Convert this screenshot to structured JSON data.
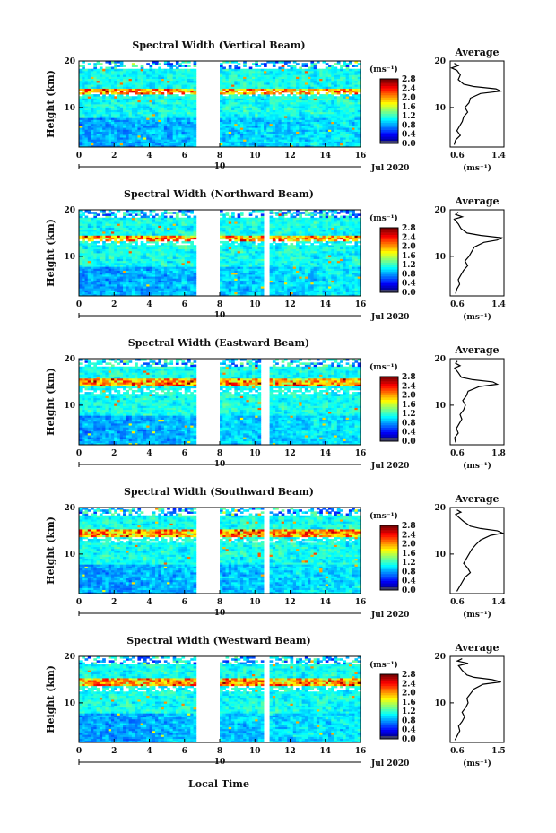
{
  "figure": {
    "xlabel": "Local Time",
    "date_label": "Jul 2020",
    "date_marker": "10",
    "ylabel": "Height (km)",
    "colorbar_unit": "(ms⁻¹)",
    "colorbar_ticks": [
      "0.0",
      "0.4",
      "0.8",
      "1.2",
      "1.6",
      "2.0",
      "2.4",
      "2.8"
    ],
    "avg_title": "Average",
    "avg_unit": "(ms⁻¹)"
  },
  "chart_data": [
    {
      "type": "heatmap",
      "title": "Spectral Width (Vertical Beam)",
      "xlabel": "Local Time",
      "ylabel": "Height (km)",
      "x_ticks": [
        "0",
        "2",
        "4",
        "6",
        "8",
        "10",
        "12",
        "14",
        "16"
      ],
      "xlim": [
        0,
        16
      ],
      "ylim": [
        1.5,
        20
      ],
      "y_ticks": [
        "20",
        "10"
      ],
      "data_gaps_hours": [
        [
          6.7,
          8.0
        ]
      ],
      "clim": [
        0.0,
        2.8
      ],
      "colormap": "jet",
      "features": {
        "turbulent_layer_km": 13.5,
        "top_km": 18.5
      },
      "average_profile": {
        "xlim": [
          0.6,
          1.4
        ],
        "x_ticks": [
          "0.6",
          "1.4"
        ],
        "y_ticks": [
          "20",
          "10"
        ],
        "height_km": [
          2,
          3,
          4,
          5,
          6,
          7,
          8,
          9,
          10,
          11,
          12,
          13,
          13.5,
          14,
          14.5,
          15,
          16,
          17,
          18,
          18.5,
          19,
          19.5
        ],
        "width_ms": [
          0.66,
          0.68,
          0.75,
          0.7,
          0.74,
          0.78,
          0.8,
          0.86,
          0.82,
          0.88,
          0.9,
          1.05,
          1.35,
          1.28,
          0.95,
          0.8,
          0.72,
          0.75,
          0.7,
          0.62,
          0.72,
          0.66
        ]
      }
    },
    {
      "type": "heatmap",
      "title": "Spectral Width (Northward Beam)",
      "xlabel": "Local Time",
      "ylabel": "Height (km)",
      "x_ticks": [
        "0",
        "2",
        "4",
        "6",
        "8",
        "10",
        "12",
        "14",
        "16"
      ],
      "xlim": [
        0,
        16
      ],
      "ylim": [
        1.5,
        20
      ],
      "y_ticks": [
        "20",
        "10"
      ],
      "data_gaps_hours": [
        [
          6.7,
          8.0
        ],
        [
          10.5,
          10.8
        ]
      ],
      "clim": [
        0.0,
        2.8
      ],
      "colormap": "jet",
      "features": {
        "turbulent_layer_km": 14,
        "top_km": 18.5
      },
      "average_profile": {
        "xlim": [
          0.6,
          1.4
        ],
        "x_ticks": [
          "0.6",
          "1.4"
        ],
        "y_ticks": [
          "20",
          "10"
        ],
        "height_km": [
          2,
          3,
          4,
          5,
          6,
          7,
          8,
          9,
          10,
          11,
          12,
          13,
          13.5,
          14,
          14.5,
          15,
          16,
          17,
          18,
          18.5,
          19,
          19.5
        ],
        "width_ms": [
          0.68,
          0.7,
          0.74,
          0.72,
          0.76,
          0.8,
          0.86,
          0.82,
          0.88,
          0.92,
          0.96,
          1.1,
          1.3,
          1.36,
          1.05,
          0.85,
          0.76,
          0.72,
          0.66,
          0.78,
          0.68,
          0.72
        ]
      }
    },
    {
      "type": "heatmap",
      "title": "Spectral Width (Eastward Beam)",
      "xlabel": "Local Time",
      "ylabel": "Height (km)",
      "x_ticks": [
        "0",
        "2",
        "4",
        "6",
        "8",
        "10",
        "12",
        "14",
        "16"
      ],
      "xlim": [
        0,
        16
      ],
      "ylim": [
        1.5,
        20
      ],
      "y_ticks": [
        "20",
        "10"
      ],
      "data_gaps_hours": [
        [
          6.7,
          8.0
        ],
        [
          10.3,
          10.8
        ]
      ],
      "clim": [
        0.0,
        2.8
      ],
      "colormap": "jet",
      "features": {
        "turbulent_layer_km": 15,
        "top_km": 18.5
      },
      "average_profile": {
        "xlim": [
          0.6,
          1.8
        ],
        "x_ticks": [
          "0.6",
          "1.8"
        ],
        "y_ticks": [
          "20",
          "10"
        ],
        "height_km": [
          2,
          3,
          4,
          5,
          6,
          7,
          8,
          9,
          10,
          11,
          12,
          13,
          14,
          14.5,
          15,
          15.5,
          16,
          17,
          18,
          18.5,
          19,
          19.5
        ],
        "width_ms": [
          0.72,
          0.7,
          0.78,
          0.74,
          0.8,
          0.86,
          0.82,
          0.9,
          0.94,
          0.88,
          0.96,
          1.0,
          1.25,
          1.65,
          1.55,
          1.1,
          0.85,
          0.78,
          0.7,
          0.82,
          0.72,
          0.76
        ]
      }
    },
    {
      "type": "heatmap",
      "title": "Spectral Width (Southward Beam)",
      "xlabel": "Local Time",
      "ylabel": "Height (km)",
      "x_ticks": [
        "0",
        "2",
        "4",
        "6",
        "8",
        "10",
        "12",
        "14",
        "16"
      ],
      "xlim": [
        0,
        16
      ],
      "ylim": [
        1.5,
        20
      ],
      "y_ticks": [
        "20",
        "10"
      ],
      "data_gaps_hours": [
        [
          6.7,
          8.0
        ],
        [
          10.5,
          10.8
        ]
      ],
      "clim": [
        0.0,
        2.8
      ],
      "colormap": "jet",
      "features": {
        "turbulent_layer_km": 14.5,
        "top_km": 18.5
      },
      "average_profile": {
        "xlim": [
          0.6,
          1.4
        ],
        "x_ticks": [
          "0.6",
          "1.4"
        ],
        "y_ticks": [
          "20",
          "10"
        ],
        "height_km": [
          2,
          3,
          4,
          5,
          6,
          7,
          8,
          9,
          10,
          11,
          12,
          13,
          14,
          14.5,
          15,
          15.5,
          16,
          17,
          18,
          18.5,
          19,
          19.5
        ],
        "width_ms": [
          0.7,
          0.74,
          0.78,
          0.82,
          0.9,
          0.86,
          0.8,
          0.84,
          0.88,
          0.92,
          0.98,
          1.05,
          1.2,
          1.38,
          1.3,
          1.05,
          0.9,
          0.8,
          0.72,
          0.68,
          0.76,
          0.7
        ]
      }
    },
    {
      "type": "heatmap",
      "title": "Spectral Width (Westward Beam)",
      "xlabel": "Local Time",
      "ylabel": "Height (km)",
      "x_ticks": [
        "0",
        "2",
        "4",
        "6",
        "8",
        "10",
        "12",
        "14",
        "16"
      ],
      "xlim": [
        0,
        16
      ],
      "ylim": [
        1.5,
        20
      ],
      "y_ticks": [
        "20",
        "10"
      ],
      "data_gaps_hours": [
        [
          6.7,
          8.0
        ],
        [
          10.5,
          10.8
        ]
      ],
      "clim": [
        0.0,
        2.8
      ],
      "colormap": "jet",
      "features": {
        "turbulent_layer_km": 14.5,
        "top_km": 18.5
      },
      "average_profile": {
        "xlim": [
          0.6,
          1.5
        ],
        "x_ticks": [
          "0.6",
          "1.5"
        ],
        "y_ticks": [
          "20",
          "10"
        ],
        "height_km": [
          2,
          3,
          4,
          5,
          6,
          7,
          8,
          9,
          10,
          11,
          12,
          13,
          14,
          14.5,
          15,
          15.5,
          16,
          17,
          18,
          18.5,
          19,
          19.5
        ],
        "width_ms": [
          0.68,
          0.72,
          0.76,
          0.74,
          0.8,
          0.84,
          0.8,
          0.86,
          0.9,
          0.88,
          0.94,
          1.0,
          1.15,
          1.45,
          1.3,
          1.0,
          0.88,
          0.8,
          0.74,
          0.9,
          0.72,
          0.8
        ]
      }
    }
  ]
}
